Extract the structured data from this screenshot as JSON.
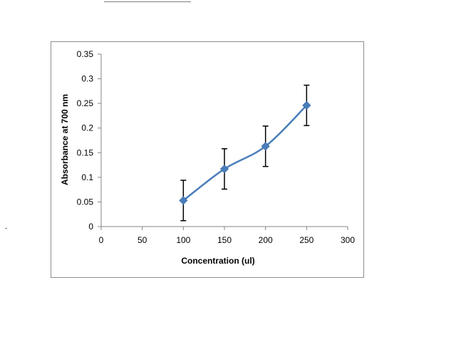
{
  "chart_data": {
    "type": "line",
    "xlabel": "Concentration (ul)",
    "ylabel": "Absorbance at 700 nm",
    "xlim": [
      0,
      300
    ],
    "ylim": [
      0,
      0.35
    ],
    "x_ticks": [
      "0",
      "50",
      "100",
      "150",
      "200",
      "250",
      "300"
    ],
    "y_ticks": [
      "0",
      "0.05",
      "0.1",
      "0.15",
      "0.2",
      "0.25",
      "0.3",
      "0.35"
    ],
    "grid": false,
    "legend": false,
    "smooth": true,
    "marker": "diamond",
    "color": "#4a7ebb",
    "series": [
      {
        "x": [
          100,
          150,
          200,
          250
        ],
        "y": [
          0.053,
          0.117,
          0.163,
          0.246
        ],
        "error": [
          0.041,
          0.041,
          0.041,
          0.041
        ]
      }
    ]
  }
}
